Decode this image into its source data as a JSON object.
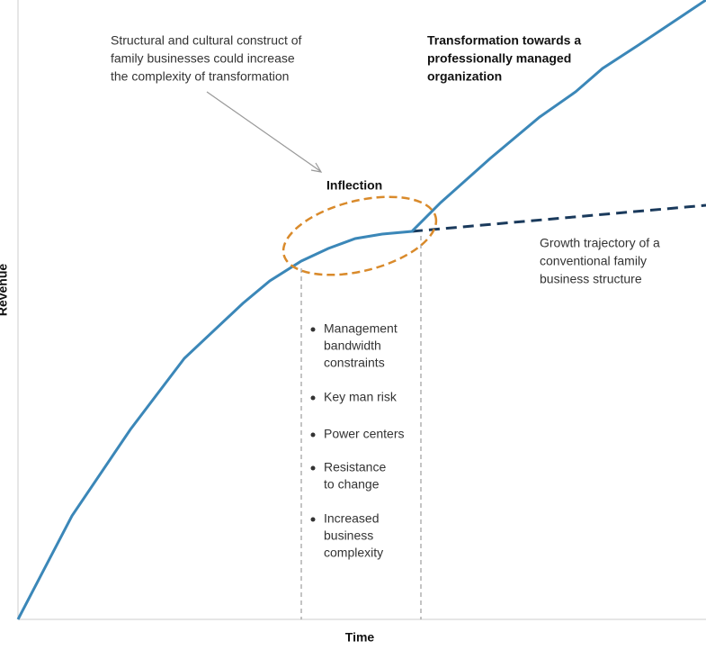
{
  "annotation": {
    "lines": [
      "Structural and cultural construct of",
      "family businesses could increase",
      "the complexity of transformation"
    ]
  },
  "transformation_label": {
    "lines": [
      "Transformation towards a",
      "professionally managed",
      "organization"
    ]
  },
  "inflection_label": "Inflection",
  "conventional_label": {
    "lines": [
      "Growth trajectory of a",
      "conventional family",
      "business structure"
    ]
  },
  "challenges": [
    {
      "lines": [
        "Management",
        "bandwidth",
        "constraints"
      ]
    },
    {
      "lines": [
        "Key man risk"
      ]
    },
    {
      "lines": [
        "Power centers"
      ]
    },
    {
      "lines": [
        "Resistance",
        "to change"
      ]
    },
    {
      "lines": [
        "Increased",
        "business",
        "complexity"
      ]
    }
  ],
  "x_axis_label": "Time",
  "y_axis_label": "Revenue"
}
